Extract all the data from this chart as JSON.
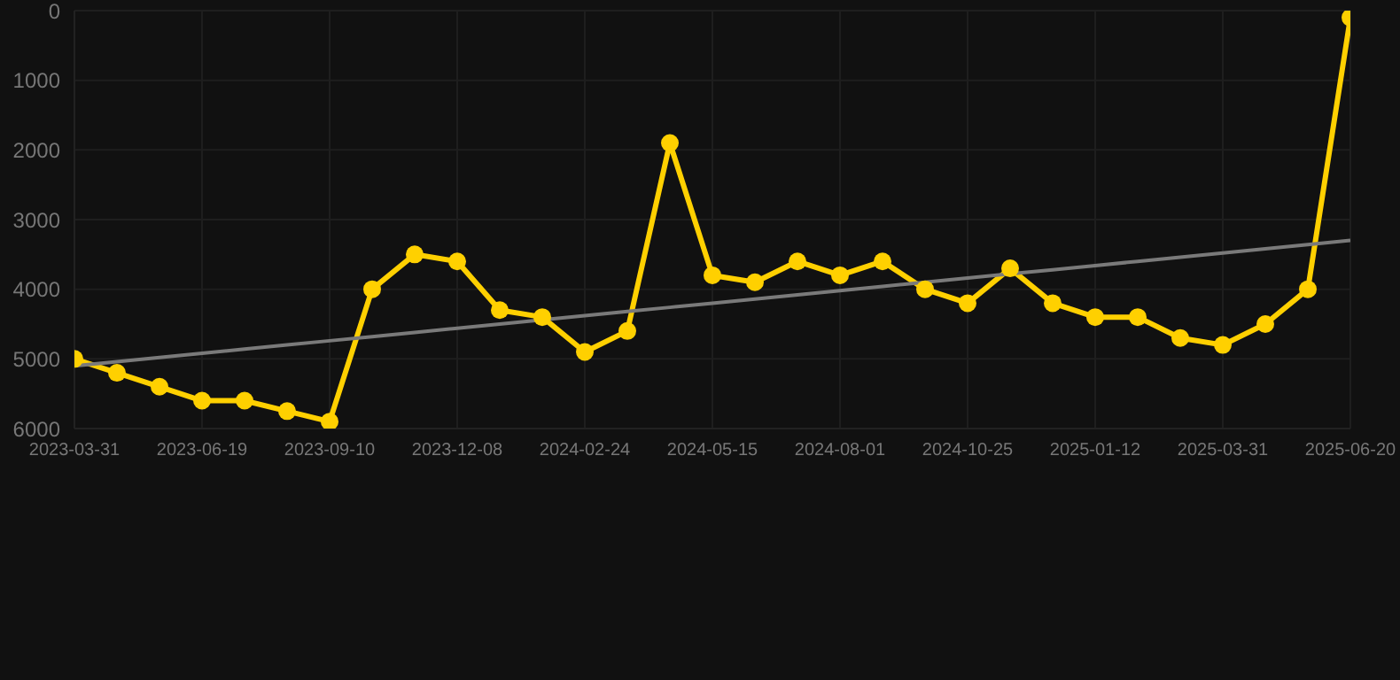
{
  "chart_data": {
    "type": "line",
    "categories": [
      "2023-03-31",
      null,
      null,
      "2023-06-19",
      null,
      null,
      "2023-09-10",
      null,
      null,
      "2023-12-08",
      null,
      null,
      "2024-02-24",
      null,
      null,
      "2024-05-15",
      null,
      null,
      "2024-08-01",
      null,
      null,
      "2024-10-25",
      null,
      null,
      "2025-01-12",
      null,
      null,
      "2025-03-31",
      null,
      null,
      "2025-06-20"
    ],
    "series": [
      {
        "color": "#ffd000",
        "values": [
          5000,
          5200,
          5400,
          5600,
          5600,
          5750,
          5900,
          4000,
          3500,
          3600,
          4300,
          4400,
          4900,
          4600,
          1900,
          3800,
          3900,
          3600,
          3800,
          3600,
          4000,
          4200,
          3700,
          4200,
          4400,
          4400,
          4700,
          4800,
          4500,
          4000,
          100
        ],
        "marker": "circle"
      },
      {
        "type": "line",
        "color": "#7a7a7a",
        "values": [
          5100,
          5040,
          4980,
          4920,
          4860,
          4800,
          4740,
          4680,
          4620,
          4560,
          4500,
          4440,
          4380,
          4320,
          4260,
          4200,
          4140,
          4080,
          4020,
          3960,
          3900,
          3840,
          3780,
          3720,
          3660,
          3600,
          3540,
          3480,
          3420,
          3360,
          3300
        ],
        "marker": "none"
      }
    ],
    "ylim": [
      6000,
      0
    ],
    "yticks": [
      0,
      1000,
      2000,
      3000,
      4000,
      5000,
      6000
    ],
    "grid": true
  }
}
